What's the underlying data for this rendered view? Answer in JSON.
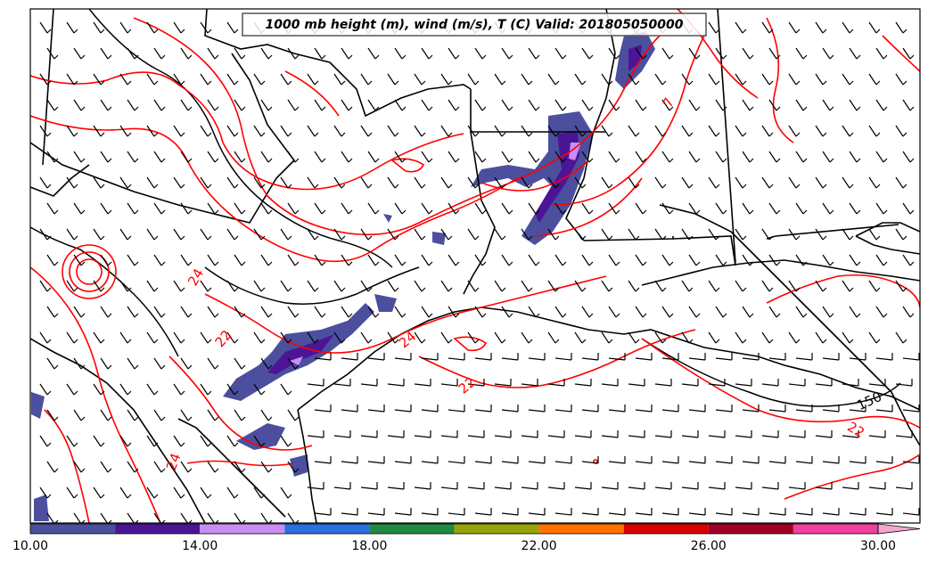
{
  "title": "1000 mb height (m), wind (m/s), T (C) Valid: 201805050000",
  "contour_labels": {
    "temperature": [
      "24",
      "22",
      "24",
      "22",
      "24",
      "22",
      "7"
    ],
    "height": [
      "150"
    ]
  },
  "colorbar": {
    "tick_labels": [
      "10.00",
      "14.00",
      "18.00",
      "22.00",
      "26.00",
      "30.00"
    ],
    "segments": [
      {
        "from": 10,
        "to": 12,
        "color": "#4b4f9e"
      },
      {
        "from": 12,
        "to": 14,
        "color": "#4b1596"
      },
      {
        "from": 14,
        "to": 16,
        "color": "#c98df5"
      },
      {
        "from": 16,
        "to": 18,
        "color": "#2b6fe0"
      },
      {
        "from": 18,
        "to": 20,
        "color": "#218a42"
      },
      {
        "from": 20,
        "to": 22,
        "color": "#98a30c"
      },
      {
        "from": 22,
        "to": 24,
        "color": "#ff7200"
      },
      {
        "from": 24,
        "to": 26,
        "color": "#d90000"
      },
      {
        "from": 26,
        "to": 28,
        "color": "#a00024"
      },
      {
        "from": 28,
        "to": 30,
        "color": "#f040a0"
      },
      {
        "from": 30,
        "to": 31,
        "color": "#f7a6d0"
      }
    ]
  },
  "colors": {
    "temperature_contour": "#ff0000",
    "height_contour": "#000000",
    "coastline": "#000000"
  }
}
